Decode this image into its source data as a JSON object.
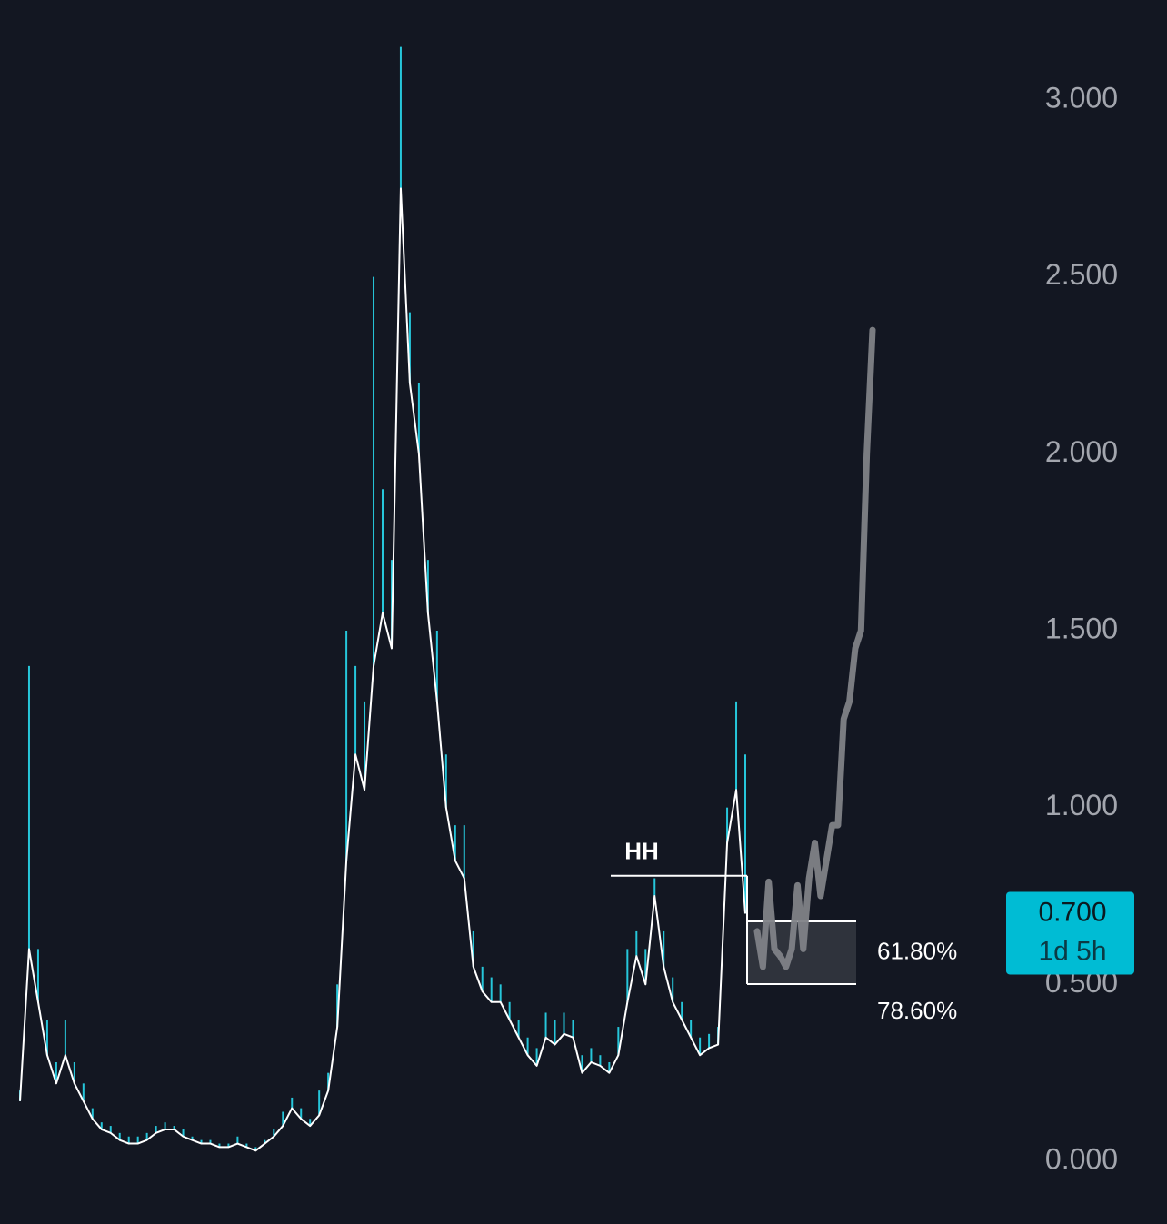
{
  "chart_data": {
    "type": "line",
    "series": [
      {
        "color": "#26c6da",
        "values": [
          0.2,
          1.4,
          0.6,
          0.4,
          0.28,
          0.4,
          0.28,
          0.22,
          0.15,
          0.11,
          0.1,
          0.08,
          0.07,
          0.07,
          0.08,
          0.1,
          0.11,
          0.1,
          0.09,
          0.07,
          0.06,
          0.06,
          0.05,
          0.05,
          0.07,
          0.05,
          0.04,
          0.06,
          0.09,
          0.14,
          0.18,
          0.15,
          0.12,
          0.2,
          0.25,
          0.5,
          1.5,
          1.4,
          1.3,
          2.5,
          1.9,
          1.7,
          3.15,
          2.4,
          2.2,
          1.7,
          1.5,
          1.15,
          0.95,
          0.95,
          0.65,
          0.55,
          0.52,
          0.5,
          0.45,
          0.4,
          0.35,
          0.32,
          0.42,
          0.4,
          0.42,
          0.4,
          0.3,
          0.32,
          0.3,
          0.28,
          0.38,
          0.6,
          0.65,
          0.6,
          0.8,
          0.65,
          0.52,
          0.45,
          0.4,
          0.35,
          0.36,
          0.38,
          1.0,
          1.3,
          1.15
        ]
      },
      {
        "color": "#ffffff",
        "values": [
          0.17,
          0.6,
          0.45,
          0.3,
          0.22,
          0.3,
          0.22,
          0.17,
          0.12,
          0.09,
          0.08,
          0.06,
          0.05,
          0.05,
          0.06,
          0.08,
          0.09,
          0.09,
          0.07,
          0.06,
          0.05,
          0.05,
          0.04,
          0.04,
          0.05,
          0.04,
          0.03,
          0.05,
          0.07,
          0.1,
          0.15,
          0.12,
          0.1,
          0.13,
          0.2,
          0.38,
          0.85,
          1.15,
          1.05,
          1.4,
          1.55,
          1.45,
          2.75,
          2.2,
          2.0,
          1.55,
          1.3,
          1.0,
          0.85,
          0.8,
          0.55,
          0.48,
          0.45,
          0.45,
          0.4,
          0.35,
          0.3,
          0.27,
          0.35,
          0.33,
          0.36,
          0.35,
          0.25,
          0.28,
          0.27,
          0.25,
          0.3,
          0.45,
          0.58,
          0.5,
          0.75,
          0.55,
          0.45,
          0.4,
          0.35,
          0.3,
          0.32,
          0.33,
          0.9,
          1.05,
          0.7
        ]
      }
    ],
    "projection": {
      "color": "#808287",
      "values": [
        0.65,
        0.55,
        0.79,
        0.6,
        0.58,
        0.55,
        0.6,
        0.78,
        0.6,
        0.8,
        0.9,
        0.75,
        0.85,
        0.95,
        0.95,
        1.25,
        1.3,
        1.45,
        1.5,
        2.0,
        2.35
      ]
    },
    "hh": {
      "label": "HH",
      "value": 0.807
    },
    "fib_levels": [
      {
        "label": "61.80%",
        "value": 0.678
      },
      {
        "label": "78.60%",
        "value": 0.501
      }
    ],
    "price_tag": {
      "value": 0.7,
      "label": "0.700",
      "countdown": "1d 5h",
      "color": "#00bcd4"
    },
    "ylim": [
      0,
      3.25
    ],
    "yticks": [
      {
        "value": 0,
        "label": "0.000"
      },
      {
        "value": 0.5,
        "label": "0.500"
      },
      {
        "value": 1,
        "label": "1.000"
      },
      {
        "value": 1.5,
        "label": "1.500"
      },
      {
        "value": 2,
        "label": "2.000"
      },
      {
        "value": 2.5,
        "label": "2.500"
      },
      {
        "value": 3,
        "label": "3.000"
      }
    ]
  }
}
